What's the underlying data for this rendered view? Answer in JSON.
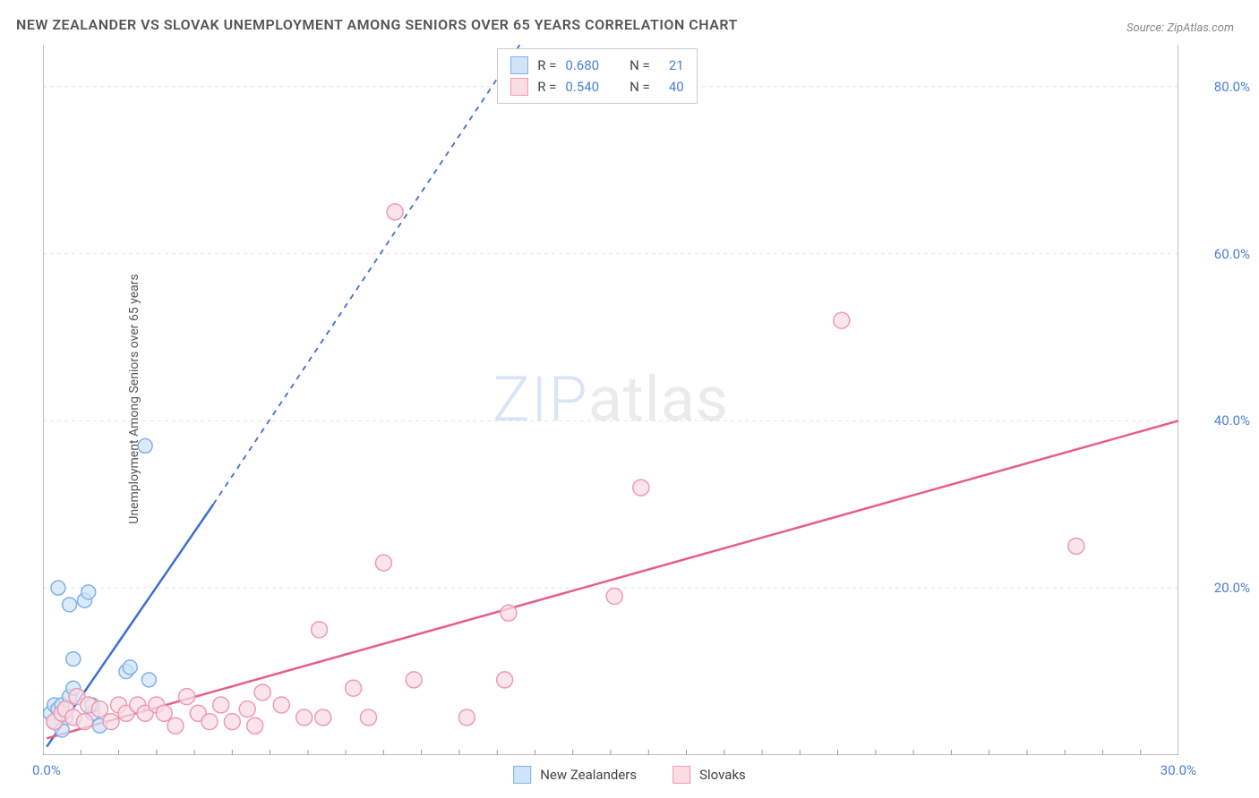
{
  "title": "NEW ZEALANDER VS SLOVAK UNEMPLOYMENT AMONG SENIORS OVER 65 YEARS CORRELATION CHART",
  "source_prefix": "Source: ",
  "source": "ZipAtlas.com",
  "y_axis_label": "Unemployment Among Seniors over 65 years",
  "watermark_zip": "ZIP",
  "watermark_atlas": "atlas",
  "chart": {
    "type": "scatter",
    "background_color": "#ffffff",
    "grid_color": "#e4e4e4",
    "axis_color": "#9a9a9a",
    "tick_label_color": "#4a7fd8",
    "x_range": [
      0,
      30
    ],
    "y_range": [
      0,
      85
    ],
    "y_gridlines": [
      20,
      40,
      60,
      80
    ],
    "y_tick_labels": [
      "20.0%",
      "40.0%",
      "60.0%",
      "80.0%"
    ],
    "x_tick_labels": {
      "min": "0.0%",
      "max": "30.0%"
    },
    "x_minor_ticks": 30,
    "series": [
      {
        "name": "New Zealanders",
        "marker_fill": "#cfe4f7",
        "marker_stroke": "#7fb1e8",
        "marker_radius": 8,
        "line_color": "#3f6fd1",
        "line_width": 2.5,
        "r_value": "0.680",
        "n_value": "21",
        "trend_solid": {
          "x1": 0.1,
          "y1": 1,
          "x2": 4.5,
          "y2": 30
        },
        "trend_dashed": {
          "x1": 4.5,
          "y1": 30,
          "x2": 12.6,
          "y2": 85
        },
        "points": [
          {
            "x": 0.2,
            "y": 5
          },
          {
            "x": 0.3,
            "y": 6
          },
          {
            "x": 0.3,
            "y": 4
          },
          {
            "x": 0.4,
            "y": 5.5
          },
          {
            "x": 0.5,
            "y": 3
          },
          {
            "x": 0.5,
            "y": 6
          },
          {
            "x": 0.6,
            "y": 4.5
          },
          {
            "x": 0.7,
            "y": 7
          },
          {
            "x": 0.8,
            "y": 8
          },
          {
            "x": 0.8,
            "y": 11.5
          },
          {
            "x": 0.4,
            "y": 20
          },
          {
            "x": 0.7,
            "y": 18
          },
          {
            "x": 1.1,
            "y": 18.5
          },
          {
            "x": 1.2,
            "y": 19.5
          },
          {
            "x": 1.3,
            "y": 5
          },
          {
            "x": 1.3,
            "y": 6
          },
          {
            "x": 1.5,
            "y": 3.5
          },
          {
            "x": 2.2,
            "y": 10
          },
          {
            "x": 2.3,
            "y": 10.5
          },
          {
            "x": 2.8,
            "y": 9
          },
          {
            "x": 2.7,
            "y": 37
          }
        ]
      },
      {
        "name": "Slovaks",
        "marker_fill": "#fadce4",
        "marker_stroke": "#ec9bb2",
        "marker_radius": 9,
        "line_color": "#e85d87",
        "line_width": 2.5,
        "r_value": "0.540",
        "n_value": "40",
        "trend_solid": {
          "x1": 0.1,
          "y1": 2,
          "x2": 30,
          "y2": 40
        },
        "points": [
          {
            "x": 0.3,
            "y": 4
          },
          {
            "x": 0.5,
            "y": 5
          },
          {
            "x": 0.6,
            "y": 5.5
          },
          {
            "x": 0.8,
            "y": 4.5
          },
          {
            "x": 0.9,
            "y": 7
          },
          {
            "x": 1.1,
            "y": 4
          },
          {
            "x": 1.2,
            "y": 6
          },
          {
            "x": 1.5,
            "y": 5.5
          },
          {
            "x": 1.8,
            "y": 4
          },
          {
            "x": 2.0,
            "y": 6
          },
          {
            "x": 2.2,
            "y": 5
          },
          {
            "x": 2.5,
            "y": 6
          },
          {
            "x": 2.7,
            "y": 5
          },
          {
            "x": 3.0,
            "y": 6
          },
          {
            "x": 3.2,
            "y": 5
          },
          {
            "x": 3.5,
            "y": 3.5
          },
          {
            "x": 3.8,
            "y": 7
          },
          {
            "x": 4.1,
            "y": 5
          },
          {
            "x": 4.4,
            "y": 4
          },
          {
            "x": 4.7,
            "y": 6
          },
          {
            "x": 5.0,
            "y": 4
          },
          {
            "x": 5.4,
            "y": 5.5
          },
          {
            "x": 5.8,
            "y": 7.5
          },
          {
            "x": 5.6,
            "y": 3.5
          },
          {
            "x": 6.3,
            "y": 6
          },
          {
            "x": 6.9,
            "y": 4.5
          },
          {
            "x": 7.3,
            "y": 15
          },
          {
            "x": 7.4,
            "y": 4.5
          },
          {
            "x": 8.2,
            "y": 8
          },
          {
            "x": 8.6,
            "y": 4.5
          },
          {
            "x": 9.0,
            "y": 23
          },
          {
            "x": 9.3,
            "y": 65
          },
          {
            "x": 9.8,
            "y": 9
          },
          {
            "x": 11.2,
            "y": 4.5
          },
          {
            "x": 12.2,
            "y": 9
          },
          {
            "x": 12.3,
            "y": 17
          },
          {
            "x": 15.1,
            "y": 19
          },
          {
            "x": 15.8,
            "y": 32
          },
          {
            "x": 21.1,
            "y": 52
          },
          {
            "x": 27.3,
            "y": 25
          }
        ]
      }
    ],
    "legend_bottom": [
      {
        "label": "New Zealanders",
        "fill": "#cfe4f7",
        "stroke": "#7fb1e8"
      },
      {
        "label": "Slovaks",
        "fill": "#fadce4",
        "stroke": "#ec9bb2"
      }
    ],
    "stats_box": {
      "r_label": "R =",
      "n_label": "N =",
      "value_color": "#4a7fd8"
    }
  }
}
